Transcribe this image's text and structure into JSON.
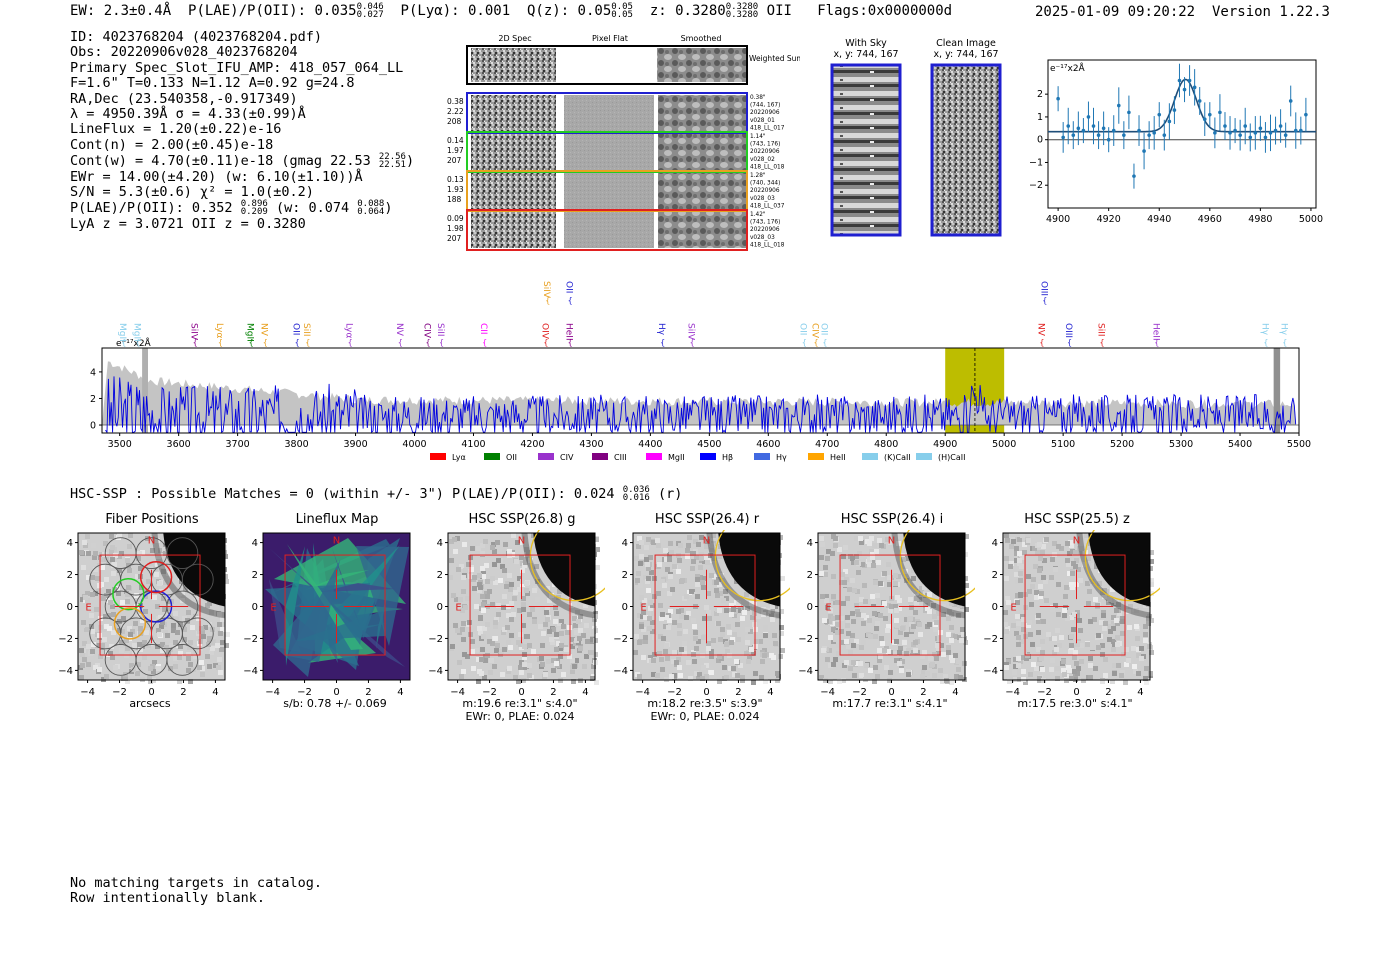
{
  "header": {
    "ew_text": "EW: 2.3±0.4Å",
    "plae_label": "P(LAE)/P(OII): 0.035",
    "plae_hi": "0.046",
    "plae_lo": "0.027",
    "plya_text": "P(Lyα): 0.001",
    "qz_label": "Q(z): 0.05",
    "qz_hi": "0.05",
    "qz_lo": "0.05",
    "z_label": "z: 0.3280",
    "z_hi": "0.3280",
    "z_lo": "0.3280",
    "z_line": "OII",
    "flags": "Flags:0x0000000d",
    "timestamp": "2025-01-09 09:20:22",
    "version": "Version 1.22.3"
  },
  "info": {
    "id": "ID: 4023768204 (4023768204.pdf)",
    "obs": "Obs: 20220906v028_4023768204",
    "slot": "Primary Spec_Slot_IFU_AMP: 418_057_064_LL",
    "fiber": "F=1.6\"  T=0.133  N=1.12  A=0.92  g=24.8",
    "radec": "RA,Dec (23.540358,-0.917349)",
    "lambda": "λ = 4950.39Å  σ = 4.33(±0.99)Å",
    "lineflux": "LineFlux = 1.20(±0.22)e-16",
    "cont_n": "Cont(n) = 2.00(±0.45)e-18",
    "cont_w": "Cont(w) = 4.70(±0.11)e-18 (gmag 22.53",
    "gmag_hi": "22.56",
    "gmag_lo": "22.51",
    "ewr": "EWr = 14.00(±4.20) (w: 6.10(±1.10))Å",
    "sn": "S/N = 5.3(±0.6)  χ² = 1.0(±0.2)",
    "plae": "P(LAE)/P(OII): 0.352",
    "plae_hi": "0.896",
    "plae_lo": "0.209",
    "plae_w": "(w: 0.074",
    "plae_w_hi": "0.088",
    "plae_w_lo": "0.064",
    "lya_z": "LyA z = 3.0721  OII z = 0.3280"
  },
  "cutouts": {
    "col_2d": "2D Spec",
    "col_flat": "Pixel Flat",
    "col_smooth": "Smoothed",
    "weighted": "Weighted Sum",
    "rows": [
      {
        "color": "#1f1fd0",
        "left": [
          "0.38",
          "2.22",
          "208"
        ],
        "right": [
          "0.38\"",
          "(744, 167)",
          "20220906",
          "v028_01",
          "418_LL_017"
        ]
      },
      {
        "color": "#22cc22",
        "left": [
          "0.14",
          "1.97",
          "207"
        ],
        "right": [
          "1.14\"",
          "(743, 176)",
          "20220906",
          "v028_02",
          "418_LL_018"
        ]
      },
      {
        "color": "#e8a020",
        "left": [
          "0.13",
          "1.93",
          "188"
        ],
        "right": [
          "1.28\"",
          "(740, 344)",
          "20220906",
          "v028_03",
          "418_LL_037"
        ]
      },
      {
        "color": "#e02020",
        "left": [
          "0.09",
          "1.98",
          "207"
        ],
        "right": [
          "1.42\"",
          "(743, 176)",
          "20220906",
          "v028_03",
          "418_LL_018"
        ]
      }
    ],
    "with_sky": "With Sky",
    "with_sky_xy": "x, y: 744, 167",
    "clean": "Clean Image",
    "clean_xy": "x, y: 744, 167"
  },
  "fit_plot": {
    "unit_label": "e⁻¹⁷x2Å",
    "xticks": [
      "4900",
      "4920",
      "4940",
      "4960",
      "4980",
      "5000"
    ],
    "yticks": [
      "2",
      "1",
      "0",
      "−1",
      "−2"
    ],
    "chart_data": {
      "type": "scatter",
      "x": [
        4900,
        4902,
        4904,
        4906,
        4908,
        4910,
        4912,
        4914,
        4916,
        4918,
        4920,
        4922,
        4924,
        4926,
        4928,
        4930,
        4932,
        4934,
        4936,
        4938,
        4940,
        4942,
        4944,
        4946,
        4948,
        4950,
        4952,
        4954,
        4956,
        4958,
        4960,
        4962,
        4964,
        4966,
        4968,
        4970,
        4972,
        4974,
        4976,
        4978,
        4980,
        4982,
        4984,
        4986,
        4988,
        4990,
        4992,
        4994,
        4996,
        4998
      ],
      "y": [
        1.8,
        0.1,
        0.6,
        0.2,
        0.5,
        0.4,
        1.0,
        0.6,
        0.2,
        0.5,
        0.0,
        0.4,
        1.5,
        0.2,
        1.2,
        -1.6,
        0.4,
        -0.5,
        0.2,
        0.3,
        1.1,
        0.2,
        0.8,
        1.3,
        2.6,
        2.2,
        2.6,
        2.3,
        1.7,
        0.9,
        1.1,
        0.3,
        1.2,
        0.6,
        0.3,
        0.4,
        0.2,
        0.6,
        0.1,
        0.3,
        0.5,
        0.1,
        0.3,
        0.4,
        0.6,
        0.2,
        1.7,
        0.4,
        0.4,
        1.1
      ],
      "xlim": [
        4896,
        5002
      ],
      "ylim": [
        -3.0,
        3.5
      ]
    }
  },
  "spectrum": {
    "unit_label": "e⁻¹⁷x2Å",
    "xticks": [
      "3500",
      "3600",
      "3700",
      "3800",
      "3900",
      "4000",
      "4100",
      "4200",
      "4300",
      "4400",
      "4500",
      "4600",
      "4700",
      "4800",
      "4900",
      "5000",
      "5100",
      "5200",
      "5300",
      "5400",
      "5500"
    ],
    "yticks": [
      "4",
      "2",
      "0"
    ],
    "line_labels": [
      {
        "t": "MgII",
        "w": 3506,
        "c": "#87ceeb",
        "row": 1
      },
      {
        "t": "MgII",
        "w": 3530,
        "c": "#87ceeb",
        "row": 1
      },
      {
        "t": "SiIV",
        "w": 3627,
        "c": "#8b008b",
        "row": 1
      },
      {
        "t": "Lyα",
        "w": 3670,
        "c": "#e8a020",
        "row": 1
      },
      {
        "t": "MgII",
        "w": 3722,
        "c": "#008000",
        "row": 1
      },
      {
        "t": "NV",
        "w": 3746,
        "c": "#e8a020",
        "row": 1
      },
      {
        "t": "OII",
        "w": 3800,
        "c": "#1f1fd0",
        "row": 1
      },
      {
        "t": "SiII",
        "w": 3818,
        "c": "#e8a020",
        "row": 1
      },
      {
        "t": "Lyα",
        "w": 3890,
        "c": "#9932cc",
        "row": 1
      },
      {
        "t": "NV",
        "w": 3975,
        "c": "#9932cc",
        "row": 1
      },
      {
        "t": "CIV",
        "w": 4022,
        "c": "#800080",
        "row": 1
      },
      {
        "t": "SiII",
        "w": 4045,
        "c": "#9932cc",
        "row": 1
      },
      {
        "t": "CII",
        "w": 4118,
        "c": "#ff00ff",
        "row": 1
      },
      {
        "t": "SiIV",
        "w": 4225,
        "c": "#e8a020",
        "row": 0
      },
      {
        "t": "OIV",
        "w": 4222,
        "c": "#e02020",
        "row": 1
      },
      {
        "t": "OII",
        "w": 4263,
        "c": "#1f1fd0",
        "row": 0
      },
      {
        "t": "HeII",
        "w": 4263,
        "c": "#8b008b",
        "row": 1
      },
      {
        "t": "Hγ",
        "w": 4420,
        "c": "#1f1fd0",
        "row": 1
      },
      {
        "t": "SiIV",
        "w": 4470,
        "c": "#9932cc",
        "row": 1
      },
      {
        "t": "OII",
        "w": 4660,
        "c": "#87ceeb",
        "row": 1
      },
      {
        "t": "CIV",
        "w": 4680,
        "c": "#e8a020",
        "row": 1
      },
      {
        "t": "OII",
        "w": 4695,
        "c": "#87ceeb",
        "row": 1
      },
      {
        "t": "OIII",
        "w": 5068,
        "c": "#1f1fd0",
        "row": 0
      },
      {
        "t": "NV",
        "w": 5063,
        "c": "#e02020",
        "row": 1
      },
      {
        "t": "OIII",
        "w": 5110,
        "c": "#1f1fd0",
        "row": 1
      },
      {
        "t": "SiII",
        "w": 5165,
        "c": "#e02020",
        "row": 1
      },
      {
        "t": "HeII",
        "w": 5258,
        "c": "#9932cc",
        "row": 1
      },
      {
        "t": "Hγ",
        "w": 5443,
        "c": "#87ceeb",
        "row": 1
      },
      {
        "t": "Hγ",
        "w": 5475,
        "c": "#87ceeb",
        "row": 1
      }
    ],
    "legend": [
      {
        "label": "Lyα",
        "color": "#ff0000"
      },
      {
        "label": "OII",
        "color": "#008000"
      },
      {
        "label": "CIV",
        "color": "#9932cc"
      },
      {
        "label": "CIII",
        "color": "#800080"
      },
      {
        "label": "MgII",
        "color": "#ff00ff"
      },
      {
        "label": "Hβ",
        "color": "#0000ff"
      },
      {
        "label": "Hγ",
        "color": "#4169e1"
      },
      {
        "label": "HeII",
        "color": "#ffa500"
      },
      {
        "label": "(K)CaII",
        "color": "#87ceeb"
      },
      {
        "label": "(H)CaII",
        "color": "#87ceeb"
      }
    ],
    "chart_data": {
      "type": "line",
      "xlim": [
        3470,
        5500
      ],
      "ylim": [
        -0.6,
        5.8
      ],
      "highlight_range": [
        4900,
        5000
      ],
      "line_center": 4950.39,
      "series": [
        {
          "values": "noise-like flux trace"
        }
      ]
    }
  },
  "hsc": {
    "head": "HSC-SSP : Possible Matches = 0 (within +/- 3\")  P(LAE)/P(OII): 0.024",
    "head_hi": "0.036",
    "head_lo": "0.016",
    "head_tail": "(r)",
    "panels": [
      {
        "title": "Fiber Positions",
        "foot": [
          "arcsecs"
        ],
        "kind": "fiber"
      },
      {
        "title": "Lineflux Map",
        "foot": [
          "s/b: 0.78 +/- 0.069"
        ],
        "kind": "flux"
      },
      {
        "title": "HSC SSP(26.8) g",
        "foot": [
          "m:19.6  re:3.1\"  s:4.0\"",
          "EWr: 0, PLAE: 0.024"
        ],
        "kind": "img"
      },
      {
        "title": "HSC SSP(26.4) r",
        "foot": [
          "m:18.2  re:3.5\"  s:3.9\"",
          "EWr: 0, PLAE: 0.024"
        ],
        "kind": "img"
      },
      {
        "title": "HSC SSP(26.4) i",
        "foot": [
          "m:17.7  re:3.1\"  s:4.1\""
        ],
        "kind": "img"
      },
      {
        "title": "HSC SSP(25.5) z",
        "foot": [
          "m:17.5  re:3.0\"  s:4.1\""
        ],
        "kind": "img"
      }
    ],
    "ticks": [
      "4",
      "2",
      "0",
      "−2",
      "−4"
    ],
    "xticks": [
      "−4",
      "−2",
      "0",
      "2",
      "4"
    ],
    "n_label": "N",
    "e_label": "E"
  },
  "note": {
    "line1": "No matching targets in catalog.",
    "line2": "Row intentionally blank."
  }
}
